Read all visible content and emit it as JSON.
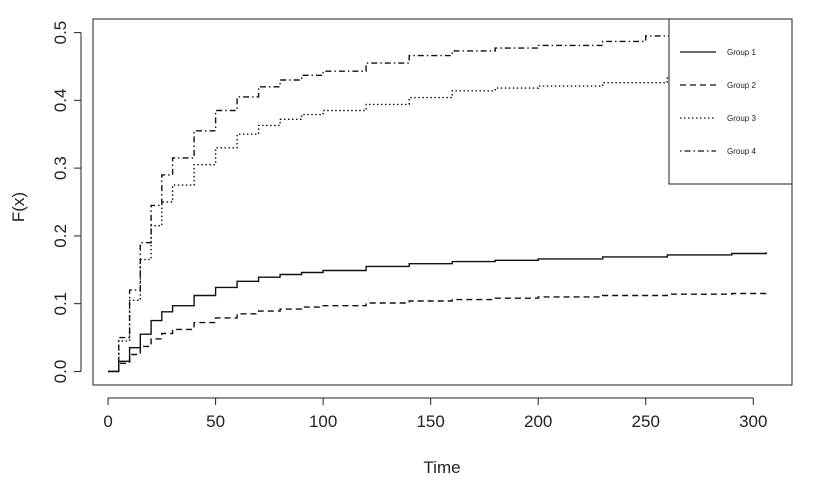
{
  "chart_data": {
    "type": "line",
    "xlabel": "Time",
    "ylabel": "F(x)",
    "xlim": [
      -7,
      318
    ],
    "ylim": [
      -0.02,
      0.52
    ],
    "x_ticks": [
      0,
      50,
      100,
      150,
      200,
      250,
      300
    ],
    "y_ticks": [
      0.0,
      0.1,
      0.2,
      0.3,
      0.4,
      0.5
    ],
    "x_tick_labels": [
      "0",
      "50",
      "100",
      "150",
      "200",
      "250",
      "300"
    ],
    "y_tick_labels": [
      "0.0",
      "0.1",
      "0.2",
      "0.3",
      "0.4",
      "0.5"
    ],
    "grid": false,
    "legend_position": "top-right",
    "series": [
      {
        "name": "Group 1",
        "line_style": "solid",
        "x": [
          0,
          5,
          10,
          15,
          20,
          25,
          30,
          40,
          50,
          60,
          70,
          80,
          90,
          100,
          120,
          140,
          160,
          180,
          200,
          230,
          260,
          290,
          306
        ],
        "y": [
          0,
          0.015,
          0.035,
          0.055,
          0.075,
          0.088,
          0.097,
          0.112,
          0.124,
          0.133,
          0.139,
          0.143,
          0.146,
          0.149,
          0.155,
          0.159,
          0.162,
          0.164,
          0.166,
          0.169,
          0.172,
          0.174,
          0.176
        ]
      },
      {
        "name": "Group 2",
        "line_style": "dashed",
        "x": [
          0,
          5,
          10,
          15,
          20,
          25,
          30,
          40,
          50,
          60,
          70,
          80,
          90,
          100,
          120,
          140,
          160,
          180,
          200,
          230,
          260,
          290,
          306
        ],
        "y": [
          0,
          0.012,
          0.025,
          0.037,
          0.048,
          0.056,
          0.062,
          0.072,
          0.079,
          0.085,
          0.089,
          0.092,
          0.095,
          0.097,
          0.101,
          0.104,
          0.106,
          0.108,
          0.11,
          0.112,
          0.114,
          0.115,
          0.115
        ]
      },
      {
        "name": "Group 3",
        "line_style": "dotted",
        "x": [
          0,
          5,
          10,
          15,
          20,
          25,
          30,
          40,
          50,
          60,
          70,
          80,
          90,
          100,
          120,
          140,
          160,
          180,
          200,
          230,
          260,
          290,
          306
        ],
        "y": [
          0,
          0.045,
          0.105,
          0.165,
          0.215,
          0.25,
          0.275,
          0.305,
          0.33,
          0.35,
          0.363,
          0.372,
          0.379,
          0.385,
          0.394,
          0.404,
          0.414,
          0.418,
          0.421,
          0.426,
          0.433,
          0.437,
          0.437
        ]
      },
      {
        "name": "Group 4",
        "line_style": "dotdash",
        "x": [
          0,
          5,
          10,
          15,
          20,
          25,
          30,
          40,
          50,
          60,
          70,
          80,
          90,
          100,
          120,
          140,
          160,
          180,
          200,
          230,
          250,
          270,
          290,
          306
        ],
        "y": [
          0,
          0.05,
          0.12,
          0.19,
          0.245,
          0.29,
          0.315,
          0.355,
          0.385,
          0.405,
          0.42,
          0.43,
          0.437,
          0.443,
          0.455,
          0.466,
          0.473,
          0.477,
          0.481,
          0.487,
          0.495,
          0.497,
          0.497,
          0.497
        ]
      }
    ]
  }
}
